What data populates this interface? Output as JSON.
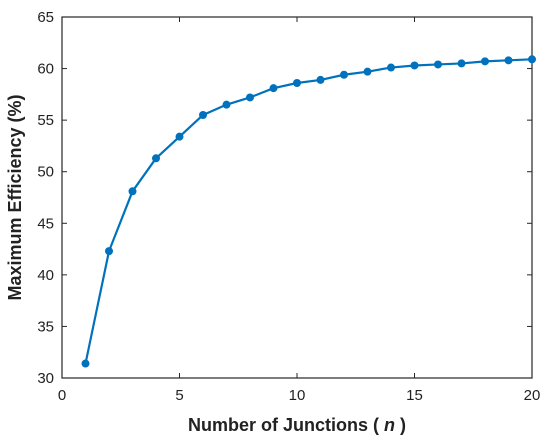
{
  "chart_data": {
    "type": "line",
    "title": "",
    "xlabel": "Number of Junctions (",
    "xlabel_var": "n",
    "xlabel_end": ")",
    "ylabel": "Maximum Efficiency (%)",
    "xlim": [
      0,
      20
    ],
    "ylim": [
      30,
      65
    ],
    "xticks": [
      0,
      5,
      10,
      15,
      20
    ],
    "yticks": [
      30,
      35,
      40,
      45,
      50,
      55,
      60,
      65
    ],
    "grid": false,
    "series": [
      {
        "color": "#0072BD",
        "x": [
          1,
          2,
          3,
          4,
          5,
          6,
          7,
          8,
          9,
          10,
          11,
          12,
          13,
          14,
          15,
          16,
          17,
          18,
          19,
          20
        ],
        "y": [
          31.4,
          42.3,
          48.1,
          51.3,
          53.4,
          55.5,
          56.5,
          57.2,
          58.1,
          58.6,
          58.9,
          59.4,
          59.7,
          60.1,
          60.3,
          60.4,
          60.5,
          60.7,
          60.8,
          60.9
        ]
      }
    ]
  }
}
